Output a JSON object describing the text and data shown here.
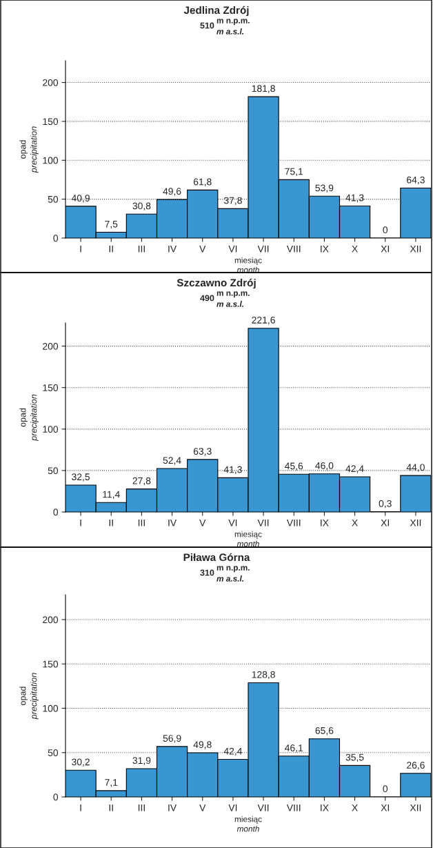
{
  "chart_data": [
    {
      "type": "bar",
      "title": "Jedlina Zdrój",
      "subtitle": "510",
      "annotations": [
        "m n.p.m.",
        "m a.s.l."
      ],
      "xlabel": "miesiąc\nmonth",
      "ylabel": "opad\nprecipitation",
      "categories": [
        "I",
        "II",
        "III",
        "IV",
        "V",
        "VI",
        "VII",
        "VIII",
        "IX",
        "X",
        "XI",
        "XII"
      ],
      "values": [
        40.9,
        7.5,
        30.8,
        49.6,
        61.8,
        37.8,
        181.8,
        75.1,
        53.9,
        41.3,
        0,
        64.3
      ],
      "value_labels": [
        "40,9",
        "7,5",
        "30,8",
        "49,6",
        "61,8",
        "37,8",
        "181,8",
        "75,1",
        "53,9",
        "41,3",
        "0",
        "64,3"
      ],
      "color": "#3a96d0",
      "ylim": [
        0,
        228
      ],
      "yticks": [
        0,
        50,
        100,
        150,
        200
      ],
      "grid": "y"
    },
    {
      "type": "bar",
      "title": "Szczawno Zdrój",
      "subtitle": "490",
      "annotations": [
        "m n.p.m.",
        "m a.s.l."
      ],
      "xlabel": "miesiąc\nmonth",
      "ylabel": "opad\nprecipitation",
      "categories": [
        "I",
        "II",
        "III",
        "IV",
        "V",
        "VI",
        "VII",
        "VIII",
        "IX",
        "X",
        "XI",
        "XII"
      ],
      "values": [
        32.5,
        11.4,
        27.8,
        52.4,
        63.3,
        41.3,
        221.6,
        45.6,
        46.0,
        42.4,
        0.3,
        44.0
      ],
      "value_labels": [
        "32,5",
        "11,4",
        "27,8",
        "52,4",
        "63,3",
        "41,3",
        "221,6",
        "45,6",
        "46,0",
        "42,4",
        "0,3",
        "44,0"
      ],
      "color": "#3a96d0",
      "ylim": [
        0,
        228
      ],
      "yticks": [
        0,
        50,
        100,
        150,
        200
      ],
      "grid": "y"
    },
    {
      "type": "bar",
      "title": "Piława Górna",
      "subtitle": "310",
      "annotations": [
        "m n.p.m.",
        "m a.s.l."
      ],
      "xlabel": "miesiąc\nmonth",
      "ylabel": "opad\nprecipitation",
      "categories": [
        "I",
        "II",
        "III",
        "IV",
        "V",
        "VI",
        "VII",
        "VIII",
        "IX",
        "X",
        "XI",
        "XII"
      ],
      "values": [
        30.2,
        7.1,
        31.9,
        56.9,
        49.8,
        42.4,
        128.8,
        46.1,
        65.6,
        35.5,
        0,
        26.6
      ],
      "value_labels": [
        "30,2",
        "7,1",
        "31,9",
        "56,9",
        "49,8",
        "42,4",
        "128,8",
        "46,1",
        "65,6",
        "35,5",
        "0",
        "26,6"
      ],
      "color": "#3a96d0",
      "ylim": [
        0,
        228
      ],
      "yticks": [
        0,
        50,
        100,
        150,
        200
      ],
      "grid": "y"
    }
  ]
}
